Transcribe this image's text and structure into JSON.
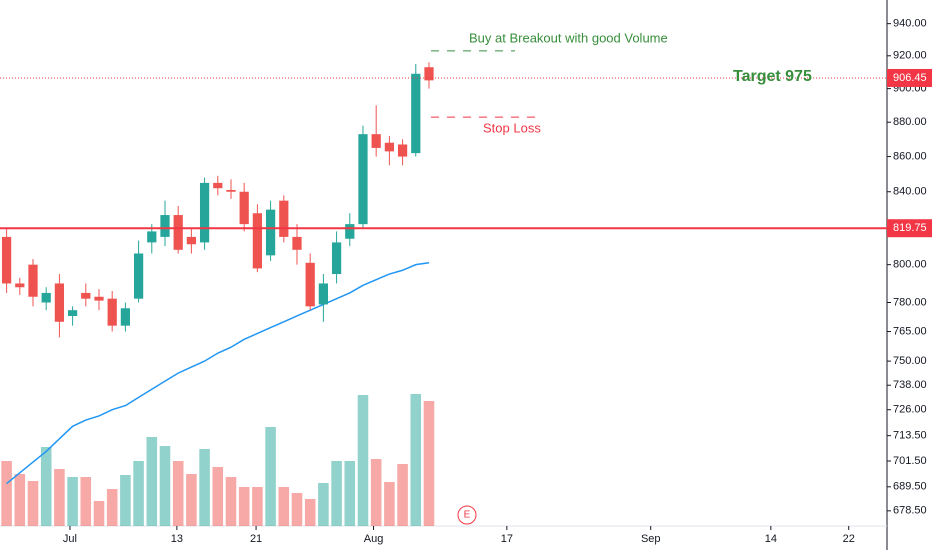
{
  "chart_data": {
    "type": "candlestick",
    "log_scale": true,
    "x": [
      0,
      1,
      2,
      3,
      4,
      5,
      6,
      7,
      8,
      9,
      10,
      11,
      12,
      13,
      14,
      15,
      16,
      17,
      18,
      19,
      20,
      21,
      22,
      23,
      24,
      25,
      26,
      27,
      28,
      29,
      30,
      31,
      32
    ],
    "open": [
      815,
      790,
      800,
      780,
      790,
      773,
      785,
      783,
      782,
      768,
      782,
      812,
      815,
      827,
      815,
      812,
      845,
      841,
      840,
      828,
      805,
      835,
      815,
      801,
      779,
      795,
      814,
      822,
      873,
      868,
      867,
      862,
      913
    ],
    "high": [
      820,
      793,
      803,
      788,
      795,
      778,
      790,
      787,
      786,
      780,
      813,
      822,
      835,
      832,
      820,
      848,
      849,
      847,
      845,
      833,
      835,
      838,
      822,
      806,
      795,
      818,
      828,
      878,
      890,
      872,
      870,
      915,
      916
    ],
    "low": [
      785,
      784,
      778,
      776,
      762,
      768,
      778,
      776,
      765,
      765,
      780,
      806,
      810,
      806,
      806,
      808,
      838,
      836,
      818,
      796,
      802,
      812,
      800,
      776,
      770,
      790,
      810,
      820,
      860,
      855,
      855,
      860,
      900
    ],
    "close": [
      790,
      788,
      783,
      785,
      770,
      776,
      782,
      781,
      768,
      777,
      806,
      818,
      827,
      808,
      811,
      845,
      842,
      840,
      822,
      798,
      830,
      815,
      808,
      778,
      790,
      812,
      822,
      873,
      865,
      863,
      860,
      909,
      905
    ],
    "colors": {
      "up": "#26a69a",
      "down": "#ef5350"
    },
    "moving_average": {
      "color": "#2196f3",
      "values": [
        691,
        696,
        701,
        706,
        712,
        718,
        721,
        723,
        726,
        728,
        732,
        736,
        740,
        744,
        747,
        750,
        754,
        757,
        761,
        764,
        767,
        770,
        773,
        776,
        779,
        782,
        785,
        789,
        792,
        795,
        797,
        800,
        801
      ]
    },
    "volume": [
      65,
      52,
      45,
      79,
      57,
      49,
      49,
      25,
      37,
      51,
      65,
      89,
      80,
      65,
      52,
      77,
      59,
      49,
      39,
      39,
      99,
      39,
      33,
      27,
      43,
      65,
      65,
      131,
      67,
      44,
      62,
      132,
      125
    ],
    "volume_lim": [
      0,
      160
    ],
    "ylim": [
      673,
      955
    ],
    "yticks": [
      {
        "value": 940,
        "label": "940.00"
      },
      {
        "value": 920,
        "label": "920.00"
      },
      {
        "value": 900,
        "label": "900.00"
      },
      {
        "value": 880,
        "label": "880.00"
      },
      {
        "value": 860,
        "label": "860.00"
      },
      {
        "value": 840,
        "label": "840.00"
      },
      {
        "value": 800,
        "label": "800.00"
      },
      {
        "value": 780,
        "label": "780.00"
      },
      {
        "value": 765,
        "label": "765.00"
      },
      {
        "value": 750,
        "label": "750.00"
      },
      {
        "value": 738,
        "label": "738.00"
      },
      {
        "value": 726,
        "label": "726.00"
      },
      {
        "value": 713.5,
        "label": "713.50"
      },
      {
        "value": 701.5,
        "label": "701.50"
      },
      {
        "value": 689.5,
        "label": "689.50"
      },
      {
        "value": 678.5,
        "label": "678.50"
      }
    ],
    "xlim": [
      -0.5,
      66.7
    ],
    "xticks": [
      {
        "value": 4.8,
        "label": "Jul"
      },
      {
        "value": 12.9,
        "label": "13"
      },
      {
        "value": 18.9,
        "label": "21"
      },
      {
        "value": 27.8,
        "label": "Aug"
      },
      {
        "value": 37.9,
        "label": "17"
      },
      {
        "value": 48.8,
        "label": "Sep"
      },
      {
        "value": 57.9,
        "label": "14"
      },
      {
        "value": 63.8,
        "label": "22"
      }
    ],
    "price_lines": [
      {
        "value": 819.75,
        "color": "#f23645",
        "style": "solid"
      },
      {
        "value": 906.45,
        "color": "#f23645",
        "style": "dotted"
      }
    ],
    "annotations": [
      {
        "text": "Buy at Breakout with good Volume",
        "color": "#388e3c",
        "level": 923
      },
      {
        "text": "Stop Loss",
        "color": "#f23645",
        "level": 883
      },
      {
        "text": "Target 975",
        "color": "#388e3c"
      }
    ],
    "earnings_marker": "E"
  }
}
